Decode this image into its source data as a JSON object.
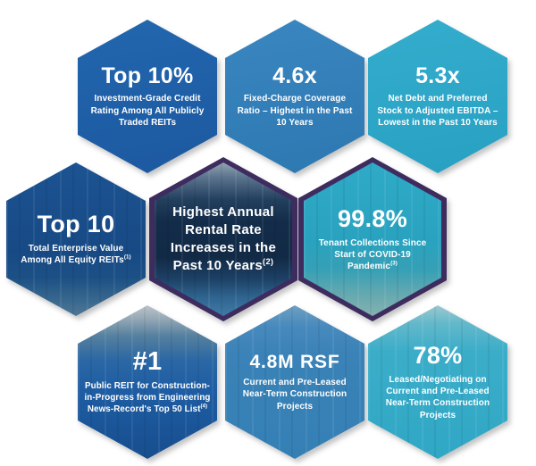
{
  "palette": {
    "dark_blue": "#1e5fa8",
    "medium_blue": "#3583bb",
    "cyan": "#2fa9c9",
    "navy": "#174e88",
    "photo_navy": "#132c49",
    "purple_border": "#3e2c5f",
    "text": "#ffffff",
    "background": "#ffffff"
  },
  "hexagons": [
    {
      "name": "credit-rating",
      "headline": "Top 10%",
      "description": "Investment-Grade Credit Rating Among All Publicly Traded REITs"
    },
    {
      "name": "fixed-charge-coverage",
      "headline": "4.6x",
      "description": "Fixed-Charge Coverage Ratio – Highest in the Past 10 Years"
    },
    {
      "name": "net-debt-ebitda",
      "headline": "5.3x",
      "description": "Net Debt and Preferred Stock to Adjusted EBITDA – Lowest in the Past 10 Years"
    },
    {
      "name": "enterprise-value",
      "headline": "Top 10",
      "description": "Total Enterprise Value Among All Equity REITs",
      "footnote": "(1)"
    },
    {
      "name": "rental-rate-increase",
      "headline": "Highest Annual Rental Rate Increases in the Past 10 Years",
      "headline_footnote": "(2)"
    },
    {
      "name": "tenant-collections",
      "headline": "99.8%",
      "description": "Tenant Collections Since Start of COVID-19 Pandemic",
      "footnote": "(3)"
    },
    {
      "name": "top-public-reit",
      "headline": "#1",
      "description": "Public REIT for Construction-in-Progress from Engineering News-Record's Top 50 List",
      "footnote": "(4)"
    },
    {
      "name": "construction-rsf",
      "headline": "4.8M RSF",
      "description": "Current and Pre-Leased Near-Term Construction Projects"
    },
    {
      "name": "leased-negotiating",
      "headline": "78%",
      "description": "Leased/Negotiating on Current and Pre-Leased Near-Term Construction Projects"
    }
  ]
}
